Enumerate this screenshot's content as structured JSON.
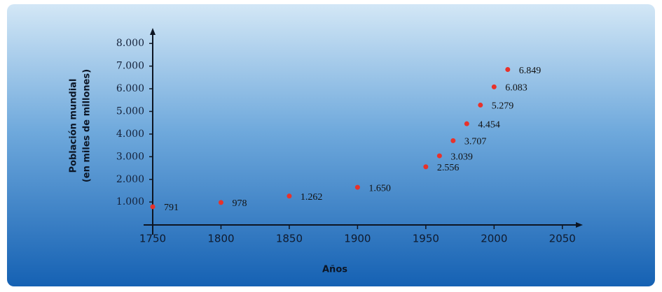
{
  "chart_data": {
    "type": "scatter",
    "ylabel": [
      "Población mundial",
      "(en miles de millones)"
    ],
    "xlabel": "Años",
    "x": [
      1750,
      1800,
      1850,
      1900,
      1950,
      1960,
      1970,
      1980,
      1990,
      2000,
      2010
    ],
    "values": [
      791,
      978,
      1262,
      1650,
      2556,
      3039,
      3707,
      4454,
      5279,
      6083,
      6849
    ],
    "value_labels": [
      "791",
      "978",
      "1.262",
      "1.650",
      "2.556",
      "3.039",
      "3.707",
      "4.454",
      "5.279",
      "6.083",
      "6.849"
    ],
    "color": "#e8322b",
    "xlim": [
      1750,
      2065
    ],
    "ylim": [
      0,
      8500
    ],
    "xticks": [
      1750,
      1800,
      1850,
      1900,
      1950,
      2000,
      2050
    ],
    "yticks": [
      {
        "value": 1000,
        "label": "1.000"
      },
      {
        "value": 2000,
        "label": "2.000"
      },
      {
        "value": 3000,
        "label": "3.000"
      },
      {
        "value": 4000,
        "label": "4.000"
      },
      {
        "value": 5000,
        "label": "5.000"
      },
      {
        "value": 6000,
        "label": "6.000"
      },
      {
        "value": 7000,
        "label": "7.000"
      },
      {
        "value": 8000,
        "label": "8.000"
      }
    ]
  }
}
